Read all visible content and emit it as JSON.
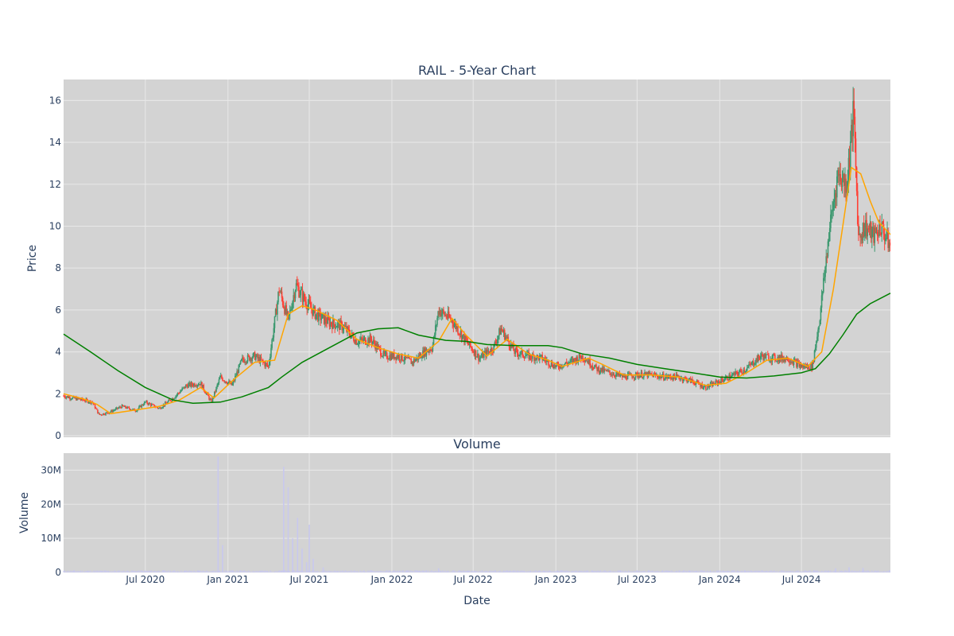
{
  "chart_data": {
    "type": "candlestick",
    "title": "RAIL - 5-Year Chart",
    "price_panel": {
      "ylabel": "Price",
      "ylim": [
        0,
        17
      ],
      "yticks": [
        "0",
        "2",
        "4",
        "6",
        "8",
        "10",
        "12",
        "14",
        "16"
      ],
      "grid": true
    },
    "volume_panel": {
      "title": "Volume",
      "ylabel": "Volume",
      "ylim": [
        0,
        35000000
      ],
      "yticks": [
        "0",
        "10M",
        "20M",
        "30M"
      ],
      "grid": true
    },
    "xlabel": "Date",
    "x_range": [
      "2020-01-01",
      "2025-01-15"
    ],
    "xticks": [
      "Jul 2020",
      "Jan 2021",
      "Jul 2021",
      "Jan 2022",
      "Jul 2022",
      "Jan 2023",
      "Jul 2023",
      "Jan 2024",
      "Jul 2024"
    ],
    "xtick_dates": [
      "2020-07-01",
      "2021-01-01",
      "2021-07-01",
      "2022-01-01",
      "2022-07-01",
      "2023-01-01",
      "2023-07-01",
      "2024-01-01",
      "2024-07-01"
    ],
    "close_series": [
      [
        "2020-01-01",
        1.9
      ],
      [
        "2020-01-20",
        1.8
      ],
      [
        "2020-02-15",
        1.7
      ],
      [
        "2020-03-05",
        1.6
      ],
      [
        "2020-03-20",
        1.0
      ],
      [
        "2020-04-10",
        1.1
      ],
      [
        "2020-05-10",
        1.4
      ],
      [
        "2020-06-10",
        1.2
      ],
      [
        "2020-07-01",
        1.6
      ],
      [
        "2020-08-01",
        1.3
      ],
      [
        "2020-09-01",
        1.8
      ],
      [
        "2020-10-01",
        2.4
      ],
      [
        "2020-11-01",
        2.5
      ],
      [
        "2020-11-25",
        1.6
      ],
      [
        "2020-12-15",
        2.8
      ],
      [
        "2021-01-10",
        2.4
      ],
      [
        "2021-02-01",
        3.6
      ],
      [
        "2021-03-01",
        3.8
      ],
      [
        "2021-04-01",
        3.3
      ],
      [
        "2021-04-25",
        7.0
      ],
      [
        "2021-05-15",
        5.5
      ],
      [
        "2021-06-01",
        7.2
      ],
      [
        "2021-06-20",
        6.5
      ],
      [
        "2021-07-15",
        5.8
      ],
      [
        "2021-08-15",
        5.4
      ],
      [
        "2021-09-15",
        5.2
      ],
      [
        "2021-10-15",
        4.5
      ],
      [
        "2021-11-15",
        4.6
      ],
      [
        "2021-12-15",
        3.8
      ],
      [
        "2022-01-15",
        3.8
      ],
      [
        "2022-02-15",
        3.5
      ],
      [
        "2022-03-15",
        4.0
      ],
      [
        "2022-04-01",
        4.2
      ],
      [
        "2022-04-15",
        6.0
      ],
      [
        "2022-05-15",
        5.5
      ],
      [
        "2022-06-15",
        4.5
      ],
      [
        "2022-07-15",
        3.7
      ],
      [
        "2022-08-15",
        4.2
      ],
      [
        "2022-09-01",
        5.1
      ],
      [
        "2022-10-01",
        4.0
      ],
      [
        "2022-11-01",
        3.8
      ],
      [
        "2022-12-01",
        3.7
      ],
      [
        "2023-01-01",
        3.3
      ],
      [
        "2023-02-01",
        3.5
      ],
      [
        "2023-03-01",
        3.8
      ],
      [
        "2023-04-01",
        3.2
      ],
      [
        "2023-05-01",
        3.0
      ],
      [
        "2023-06-01",
        2.8
      ],
      [
        "2023-07-01",
        2.9
      ],
      [
        "2023-08-01",
        2.9
      ],
      [
        "2023-09-01",
        2.8
      ],
      [
        "2023-10-01",
        2.8
      ],
      [
        "2023-11-01",
        2.6
      ],
      [
        "2023-12-01",
        2.3
      ],
      [
        "2024-01-01",
        2.6
      ],
      [
        "2024-02-01",
        2.9
      ],
      [
        "2024-03-01",
        3.2
      ],
      [
        "2024-04-01",
        3.8
      ],
      [
        "2024-05-01",
        3.7
      ],
      [
        "2024-06-01",
        3.7
      ],
      [
        "2024-07-01",
        3.3
      ],
      [
        "2024-07-25",
        3.3
      ],
      [
        "2024-08-10",
        5.5
      ],
      [
        "2024-09-01",
        9.8
      ],
      [
        "2024-09-20",
        12.5
      ],
      [
        "2024-10-10",
        12.0
      ],
      [
        "2024-10-25",
        15.5
      ],
      [
        "2024-11-05",
        9.5
      ],
      [
        "2024-11-20",
        10.0
      ],
      [
        "2024-12-10",
        9.5
      ],
      [
        "2024-12-25",
        10.0
      ],
      [
        "2025-01-15",
        9.0
      ]
    ],
    "ma_short": {
      "color": "#ffa500",
      "points": [
        [
          "2020-01-01",
          2.0
        ],
        [
          "2020-02-15",
          1.75
        ],
        [
          "2020-03-15",
          1.5
        ],
        [
          "2020-04-15",
          1.05
        ],
        [
          "2020-06-01",
          1.2
        ],
        [
          "2020-08-01",
          1.4
        ],
        [
          "2020-09-15",
          1.7
        ],
        [
          "2020-11-01",
          2.3
        ],
        [
          "2020-12-01",
          1.8
        ],
        [
          "2021-01-15",
          2.7
        ],
        [
          "2021-03-01",
          3.5
        ],
        [
          "2021-04-15",
          3.6
        ],
        [
          "2021-05-15",
          5.8
        ],
        [
          "2021-06-15",
          6.2
        ],
        [
          "2021-07-15",
          6.0
        ],
        [
          "2021-09-01",
          5.5
        ],
        [
          "2021-10-15",
          4.6
        ],
        [
          "2021-12-01",
          4.2
        ],
        [
          "2022-01-15",
          3.9
        ],
        [
          "2022-03-01",
          3.7
        ],
        [
          "2022-04-15",
          4.5
        ],
        [
          "2022-05-15",
          5.6
        ],
        [
          "2022-06-15",
          4.8
        ],
        [
          "2022-08-01",
          3.8
        ],
        [
          "2022-09-15",
          4.6
        ],
        [
          "2022-11-01",
          3.9
        ],
        [
          "2022-12-15",
          3.6
        ],
        [
          "2023-01-15",
          3.3
        ],
        [
          "2023-03-15",
          3.7
        ],
        [
          "2023-04-15",
          3.4
        ],
        [
          "2023-06-01",
          2.9
        ],
        [
          "2023-08-01",
          2.9
        ],
        [
          "2023-10-01",
          2.8
        ],
        [
          "2023-12-01",
          2.4
        ],
        [
          "2024-01-15",
          2.5
        ],
        [
          "2024-03-01",
          3.0
        ],
        [
          "2024-04-15",
          3.6
        ],
        [
          "2024-06-01",
          3.7
        ],
        [
          "2024-07-15",
          3.3
        ],
        [
          "2024-08-15",
          4.0
        ],
        [
          "2024-09-10",
          7.0
        ],
        [
          "2024-10-01",
          10.0
        ],
        [
          "2024-10-20",
          12.8
        ],
        [
          "2024-11-10",
          12.5
        ],
        [
          "2024-12-01",
          11.2
        ],
        [
          "2024-12-20",
          10.2
        ],
        [
          "2025-01-15",
          9.6
        ]
      ]
    },
    "ma_long": {
      "color": "#008000",
      "points": [
        [
          "2020-01-01",
          4.85
        ],
        [
          "2020-03-01",
          4.0
        ],
        [
          "2020-05-01",
          3.1
        ],
        [
          "2020-07-01",
          2.3
        ],
        [
          "2020-09-01",
          1.7
        ],
        [
          "2020-10-15",
          1.55
        ],
        [
          "2020-12-15",
          1.6
        ],
        [
          "2021-02-01",
          1.85
        ],
        [
          "2021-04-01",
          2.3
        ],
        [
          "2021-05-01",
          2.8
        ],
        [
          "2021-06-15",
          3.5
        ],
        [
          "2021-08-15",
          4.2
        ],
        [
          "2021-10-15",
          4.9
        ],
        [
          "2021-12-01",
          5.1
        ],
        [
          "2022-01-15",
          5.15
        ],
        [
          "2022-03-01",
          4.8
        ],
        [
          "2022-05-01",
          4.55
        ],
        [
          "2022-06-15",
          4.5
        ],
        [
          "2022-08-01",
          4.35
        ],
        [
          "2022-10-01",
          4.3
        ],
        [
          "2022-12-15",
          4.3
        ],
        [
          "2023-01-15",
          4.2
        ],
        [
          "2023-03-01",
          3.9
        ],
        [
          "2023-05-01",
          3.7
        ],
        [
          "2023-07-01",
          3.4
        ],
        [
          "2023-09-01",
          3.2
        ],
        [
          "2023-11-01",
          3.0
        ],
        [
          "2024-01-01",
          2.8
        ],
        [
          "2024-03-01",
          2.75
        ],
        [
          "2024-05-01",
          2.85
        ],
        [
          "2024-07-01",
          3.0
        ],
        [
          "2024-08-01",
          3.2
        ],
        [
          "2024-09-01",
          3.9
        ],
        [
          "2024-10-01",
          4.8
        ],
        [
          "2024-11-01",
          5.8
        ],
        [
          "2024-12-01",
          6.3
        ],
        [
          "2025-01-15",
          6.8
        ]
      ]
    },
    "volume_spikes": [
      [
        "2020-12-10",
        34000000
      ],
      [
        "2020-12-20",
        8000000
      ],
      [
        "2021-05-05",
        31000000
      ],
      [
        "2021-05-15",
        25000000
      ],
      [
        "2021-05-25",
        10000000
      ],
      [
        "2021-06-05",
        16000000
      ],
      [
        "2021-06-15",
        7000000
      ],
      [
        "2021-06-25",
        3000000
      ],
      [
        "2021-07-01",
        14000000
      ],
      [
        "2021-07-10",
        4000000
      ],
      [
        "2021-08-01",
        1500000
      ],
      [
        "2022-04-15",
        1200000
      ],
      [
        "2024-09-15",
        1200000
      ],
      [
        "2024-10-15",
        1500000
      ],
      [
        "2024-11-15",
        1300000
      ]
    ],
    "colors": {
      "increasing": "#3d9970",
      "decreasing": "#ff4136",
      "volume": "#c8c8ee",
      "plot_bg": "#d3d3d3",
      "grid": "#e8e8e8"
    }
  }
}
